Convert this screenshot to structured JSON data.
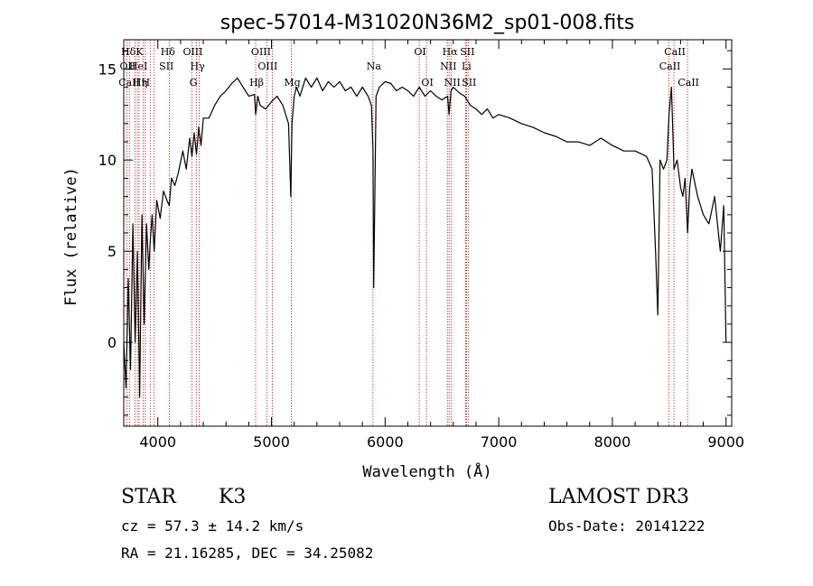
{
  "chart_data": {
    "type": "line",
    "title": "spec-57014-M31020N36M2_sp01-008.fits",
    "xlabel": "Wavelength (Å)",
    "ylabel": "Flux (relative)",
    "xlim": [
      3700,
      9050
    ],
    "ylim": [
      -4.6,
      16.6
    ],
    "xticks": [
      4000,
      5000,
      6000,
      7000,
      8000,
      9000
    ],
    "yticks": [
      0,
      5,
      10,
      15
    ],
    "series": [
      {
        "name": "spectrum",
        "color": "#000000",
        "x": [
          3700,
          3720,
          3740,
          3760,
          3780,
          3800,
          3820,
          3840,
          3860,
          3880,
          3900,
          3920,
          3933,
          3950,
          3968,
          3990,
          4020,
          4050,
          4080,
          4101,
          4120,
          4150,
          4180,
          4220,
          4250,
          4280,
          4300,
          4320,
          4340,
          4360,
          4380,
          4400,
          4450,
          4500,
          4550,
          4600,
          4650,
          4700,
          4750,
          4800,
          4850,
          4861,
          4880,
          4900,
          4950,
          5000,
          5050,
          5100,
          5150,
          5170,
          5180,
          5200,
          5220,
          5250,
          5300,
          5350,
          5400,
          5450,
          5500,
          5550,
          5600,
          5650,
          5700,
          5750,
          5800,
          5850,
          5880,
          5893,
          5900,
          5920,
          5950,
          6000,
          6050,
          6100,
          6150,
          6200,
          6250,
          6300,
          6350,
          6400,
          6450,
          6500,
          6550,
          6563,
          6580,
          6600,
          6650,
          6700,
          6750,
          6800,
          6850,
          6900,
          6950,
          7000,
          7100,
          7200,
          7300,
          7400,
          7500,
          7600,
          7700,
          7800,
          7900,
          8000,
          8100,
          8200,
          8300,
          8350,
          8380,
          8400,
          8420,
          8450,
          8480,
          8498,
          8520,
          8542,
          8570,
          8600,
          8620,
          8640,
          8662,
          8680,
          8700,
          8750,
          8800,
          8850,
          8900,
          8950,
          8980,
          9000
        ],
        "values": [
          0,
          -2.5,
          3.5,
          -1.5,
          6.5,
          0,
          5,
          -3,
          7,
          1,
          6.5,
          4,
          5.5,
          7,
          5,
          7.8,
          6.8,
          8.3,
          7.8,
          7.5,
          9,
          8.6,
          9.3,
          10.5,
          9.5,
          11.2,
          10.2,
          11.5,
          10.3,
          11.8,
          10.8,
          12.3,
          12.3,
          13.0,
          13.5,
          13.8,
          14.2,
          14.5,
          14.0,
          13.5,
          13.6,
          12.5,
          13.5,
          13.0,
          12.8,
          13.2,
          13.5,
          13.0,
          12.0,
          8.0,
          12.0,
          13.5,
          14.0,
          13.5,
          14.5,
          14.0,
          14.5,
          13.8,
          14.3,
          14.0,
          14.3,
          13.8,
          14.0,
          13.5,
          14.0,
          13.5,
          13.0,
          10.5,
          3.0,
          13.5,
          14.0,
          14.3,
          14.2,
          13.8,
          14.0,
          13.8,
          13.5,
          14.0,
          13.5,
          13.8,
          13.5,
          13.3,
          13.5,
          12.5,
          13.8,
          14.0,
          13.7,
          13.5,
          13.0,
          12.8,
          12.5,
          12.8,
          12.3,
          12.5,
          12.3,
          12.0,
          11.8,
          11.5,
          11.3,
          11.0,
          11.0,
          10.8,
          11.2,
          10.8,
          10.5,
          10.5,
          10.2,
          9.5,
          5.0,
          1.5,
          10.0,
          9.5,
          10.0,
          12.5,
          14.0,
          9.5,
          10.0,
          8.5,
          8.0,
          9.0,
          6.0,
          8.5,
          9.5,
          8.0,
          7.0,
          6.5,
          8.0,
          5.0,
          7.5,
          0
        ]
      }
    ],
    "line_markers": [
      {
        "label": "Hδ",
        "x": 3733
      },
      {
        "label": "OII",
        "x": 3727
      },
      {
        "label": "CaII",
        "x": 3740
      },
      {
        "label": "K",
        "x": 3830
      },
      {
        "label": "HeI",
        "x": 3820
      },
      {
        "label": "Hη",
        "x": 3835
      },
      {
        "label": "H",
        "x": 3885
      },
      {
        "label": "Hδ",
        "x": 4080
      },
      {
        "label": "SII",
        "x": 4068
      },
      {
        "label": "OIII",
        "x": 4300
      },
      {
        "label": "Hγ",
        "x": 4341
      },
      {
        "label": "G",
        "x": 4304
      },
      {
        "label": "OIII",
        "x": 4900
      },
      {
        "label": "OIII",
        "x": 4959
      },
      {
        "label": "Hβ",
        "x": 4861
      },
      {
        "label": "Mg",
        "x": 5175
      },
      {
        "label": "Na",
        "x": 5893
      },
      {
        "label": "OI",
        "x": 6300
      },
      {
        "label": "OI",
        "x": 6364
      },
      {
        "label": "Hα",
        "x": 6563
      },
      {
        "label": "SII",
        "x": 6716
      },
      {
        "label": "NII",
        "x": 6548
      },
      {
        "label": "Li",
        "x": 6708
      },
      {
        "label": "NII",
        "x": 6583
      },
      {
        "label": "SII",
        "x": 6731
      },
      {
        "label": "CaII",
        "x": 8542
      },
      {
        "label": "CaII",
        "x": 8498
      },
      {
        "label": "CaII",
        "x": 8662
      }
    ],
    "marker_lines_x": [
      3727,
      3750,
      3800,
      3820,
      3835,
      3870,
      3889,
      3933,
      3968,
      4101,
      4300,
      4341,
      4363,
      4861,
      4959,
      5007,
      5175,
      5893,
      6300,
      6364,
      6548,
      6563,
      6583,
      6708,
      6716,
      6731,
      8498,
      8542,
      8662
    ],
    "marker_color": "#cc0000"
  },
  "info": {
    "object_class": "STAR",
    "subclass": "K3",
    "survey": "LAMOST DR3",
    "cz": "cz = 57.3 ± 14.2 km/s",
    "obs_date": "Obs-Date: 20141222",
    "coords": "RA =  21.16285, DEC =  34.25082"
  }
}
